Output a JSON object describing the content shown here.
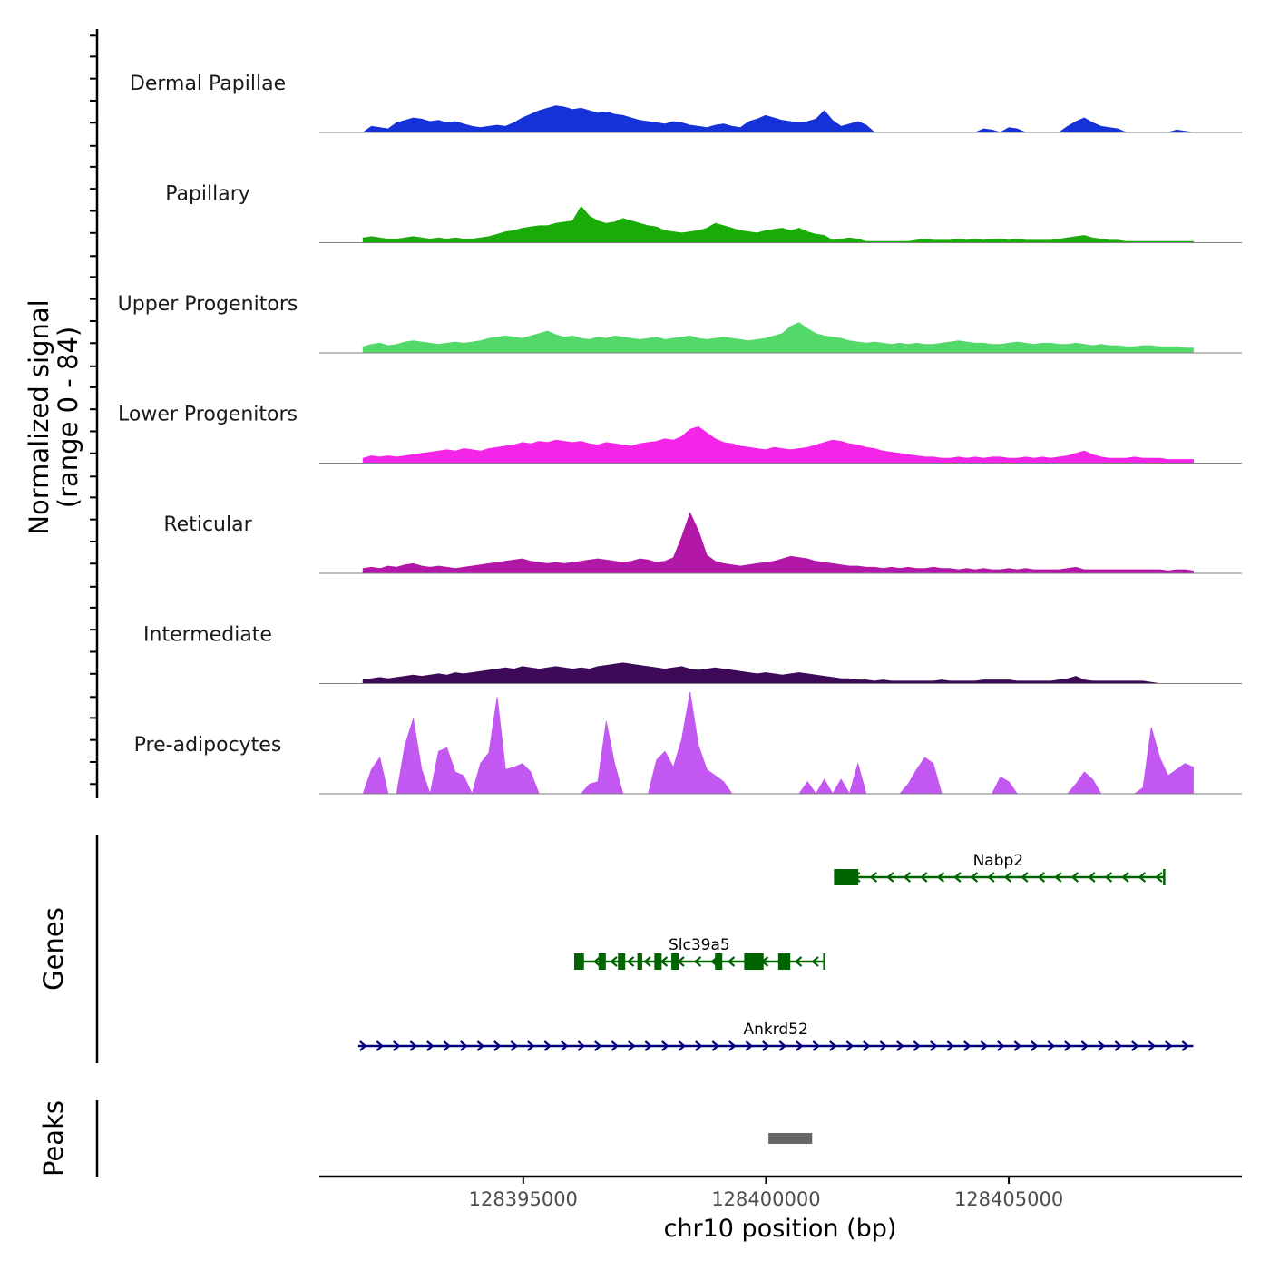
{
  "chart_data": {
    "type": "area",
    "title": "",
    "xlabel": "chr10 position (bp)",
    "ylabel": "Normalized signal",
    "ylabel_range": "(range 0 - 84)",
    "ylim": [
      0,
      84
    ],
    "xlim": [
      128390800,
      128409800
    ],
    "x_ticks": [
      128395000,
      128400000,
      128405000
    ],
    "x_tick_labels": [
      "128395000",
      "128400000",
      "128405000"
    ],
    "region_start": 128391700,
    "region_end": 128408800,
    "series": [
      {
        "name": "Dermal Papillae",
        "color": "#1432d7",
        "values": [
          0,
          5,
          4,
          3,
          8,
          10,
          12,
          11,
          9,
          10,
          8,
          9,
          7,
          5,
          4,
          5,
          6,
          5,
          8,
          12,
          15,
          18,
          20,
          22,
          21,
          19,
          20,
          18,
          16,
          17,
          15,
          14,
          12,
          10,
          9,
          8,
          7,
          9,
          8,
          6,
          5,
          4,
          6,
          7,
          5,
          4,
          9,
          11,
          14,
          12,
          10,
          9,
          8,
          9,
          11,
          18,
          10,
          5,
          7,
          9,
          6,
          0,
          0,
          0,
          0,
          0,
          0,
          0,
          0,
          0,
          0,
          0,
          0,
          0,
          3,
          2,
          0,
          4,
          3,
          0,
          0,
          0,
          0,
          0,
          5,
          9,
          12,
          8,
          5,
          4,
          3,
          0,
          0,
          0,
          0,
          0,
          0,
          2,
          1,
          0
        ]
      },
      {
        "name": "Papillary",
        "color": "#19ac06",
        "values": [
          4,
          5,
          4,
          3,
          3,
          4,
          5,
          4,
          3,
          4,
          3,
          4,
          3,
          3,
          4,
          5,
          7,
          9,
          10,
          12,
          13,
          14,
          14,
          16,
          17,
          18,
          30,
          22,
          18,
          16,
          17,
          20,
          18,
          16,
          14,
          13,
          10,
          9,
          8,
          9,
          10,
          12,
          16,
          14,
          12,
          10,
          9,
          8,
          10,
          11,
          12,
          10,
          12,
          9,
          7,
          6,
          2,
          3,
          4,
          3,
          1,
          1,
          1,
          1,
          1,
          1,
          2,
          3,
          2,
          2,
          2,
          3,
          2,
          3,
          2,
          3,
          3,
          2,
          3,
          2,
          2,
          2,
          2,
          3,
          4,
          5,
          6,
          4,
          3,
          2,
          2,
          1,
          1,
          1,
          1,
          1,
          1,
          1,
          1,
          1
        ]
      },
      {
        "name": "Upper Progenitors",
        "color": "#53d96a",
        "values": [
          5,
          7,
          8,
          6,
          7,
          9,
          10,
          9,
          8,
          7,
          8,
          9,
          8,
          9,
          10,
          12,
          13,
          14,
          13,
          12,
          14,
          16,
          18,
          15,
          13,
          14,
          12,
          11,
          13,
          12,
          14,
          13,
          12,
          11,
          12,
          13,
          11,
          12,
          13,
          14,
          12,
          11,
          12,
          13,
          12,
          11,
          10,
          11,
          12,
          14,
          16,
          22,
          25,
          20,
          16,
          14,
          13,
          12,
          10,
          9,
          8,
          9,
          8,
          7,
          8,
          7,
          8,
          7,
          7,
          8,
          9,
          10,
          9,
          8,
          8,
          7,
          7,
          8,
          9,
          8,
          7,
          8,
          8,
          7,
          7,
          8,
          7,
          6,
          7,
          6,
          6,
          5,
          5,
          6,
          6,
          5,
          5,
          5,
          4,
          4
        ]
      },
      {
        "name": "Lower Progenitors",
        "color": "#f425e9",
        "values": [
          4,
          6,
          5,
          6,
          5,
          6,
          7,
          8,
          9,
          10,
          11,
          10,
          12,
          11,
          10,
          12,
          13,
          14,
          15,
          17,
          16,
          18,
          17,
          19,
          18,
          17,
          18,
          16,
          15,
          17,
          16,
          15,
          14,
          16,
          17,
          18,
          20,
          19,
          22,
          28,
          30,
          25,
          20,
          17,
          16,
          14,
          13,
          12,
          11,
          13,
          12,
          11,
          12,
          13,
          15,
          17,
          19,
          18,
          16,
          15,
          13,
          12,
          10,
          9,
          8,
          7,
          6,
          5,
          5,
          4,
          4,
          5,
          4,
          5,
          4,
          5,
          5,
          4,
          4,
          5,
          4,
          5,
          4,
          5,
          6,
          8,
          10,
          7,
          5,
          4,
          4,
          4,
          5,
          4,
          4,
          4,
          3,
          3,
          3,
          3
        ]
      },
      {
        "name": "Reticular",
        "color": "#b217a7",
        "values": [
          4,
          5,
          4,
          6,
          5,
          7,
          8,
          6,
          5,
          6,
          5,
          4,
          5,
          6,
          7,
          8,
          9,
          10,
          11,
          12,
          10,
          9,
          8,
          9,
          8,
          9,
          10,
          11,
          12,
          11,
          10,
          9,
          10,
          12,
          11,
          9,
          10,
          13,
          30,
          50,
          35,
          15,
          10,
          8,
          7,
          6,
          7,
          8,
          9,
          10,
          12,
          14,
          13,
          12,
          10,
          9,
          8,
          7,
          6,
          6,
          5,
          5,
          4,
          5,
          4,
          5,
          4,
          4,
          5,
          4,
          4,
          3,
          4,
          3,
          4,
          3,
          3,
          4,
          3,
          4,
          3,
          3,
          3,
          3,
          4,
          5,
          3,
          3,
          3,
          3,
          3,
          3,
          3,
          3,
          3,
          3,
          2,
          3,
          3,
          2
        ]
      },
      {
        "name": "Intermediate",
        "color": "#3c0a57",
        "values": [
          3,
          4,
          5,
          4,
          5,
          6,
          7,
          6,
          7,
          8,
          7,
          9,
          8,
          9,
          10,
          11,
          12,
          13,
          12,
          14,
          13,
          12,
          13,
          14,
          13,
          12,
          13,
          12,
          14,
          15,
          16,
          17,
          16,
          15,
          14,
          13,
          12,
          13,
          14,
          12,
          11,
          12,
          13,
          12,
          11,
          10,
          9,
          8,
          9,
          8,
          7,
          8,
          9,
          8,
          7,
          6,
          5,
          4,
          4,
          3,
          3,
          2,
          3,
          2,
          2,
          2,
          2,
          2,
          2,
          3,
          2,
          2,
          2,
          2,
          3,
          3,
          3,
          3,
          2,
          2,
          2,
          2,
          2,
          3,
          4,
          6,
          3,
          2,
          2,
          2,
          2,
          2,
          2,
          2,
          1,
          0,
          0,
          0,
          0,
          0
        ]
      },
      {
        "name": "Pre-adipocytes",
        "color": "#c257f2",
        "values": [
          0,
          20,
          30,
          0,
          0,
          40,
          62,
          20,
          0,
          35,
          38,
          18,
          15,
          0,
          25,
          34,
          80,
          20,
          22,
          25,
          18,
          0,
          0,
          0,
          0,
          0,
          0,
          8,
          10,
          60,
          25,
          0,
          0,
          0,
          0,
          28,
          35,
          22,
          45,
          84,
          40,
          20,
          15,
          10,
          0,
          0,
          0,
          0,
          0,
          0,
          0,
          0,
          0,
          10,
          0,
          12,
          0,
          12,
          0,
          25,
          0,
          0,
          0,
          0,
          0,
          8,
          20,
          30,
          25,
          0,
          0,
          0,
          0,
          0,
          0,
          0,
          14,
          10,
          0,
          0,
          0,
          0,
          0,
          0,
          0,
          8,
          18,
          12,
          0,
          0,
          0,
          0,
          0,
          5,
          55,
          30,
          15,
          20,
          25,
          22
        ]
      }
    ],
    "genes": [
      {
        "name": "Nabp2",
        "strand": "-",
        "start": 128401400,
        "end": 128408200,
        "exons": [
          [
            128401400,
            128401900
          ]
        ]
      },
      {
        "name": "Slc39a5",
        "strand": "-",
        "start": 128396050,
        "end": 128401200,
        "exons": [
          [
            128396050,
            128396250
          ],
          [
            128396550,
            128396700
          ],
          [
            128396950,
            128397100
          ],
          [
            128397350,
            128397450
          ],
          [
            128397700,
            128397850
          ],
          [
            128398050,
            128398200
          ],
          [
            128398950,
            128399100
          ],
          [
            128399550,
            128399950
          ],
          [
            128400250,
            128400500
          ]
        ]
      },
      {
        "name": "Ankrd52",
        "strand": "+",
        "start": 128391600,
        "end": 128408800,
        "exons": []
      }
    ],
    "peaks": [
      {
        "start": 128400050,
        "end": 128400950
      }
    ],
    "colors": {
      "gene": "#006400",
      "gene_ankrd52": "#000080",
      "peak": "#666666",
      "axis": "#000000"
    }
  }
}
